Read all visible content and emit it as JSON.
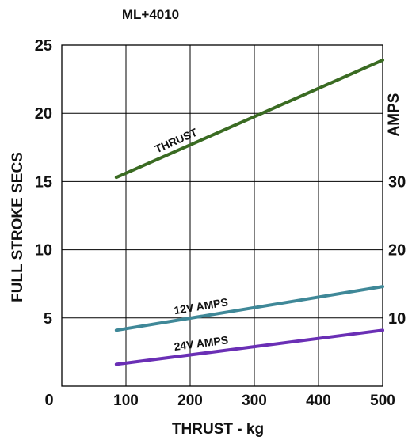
{
  "chart_data": {
    "type": "line",
    "title": "ML+4010",
    "xlabel": "THRUST - kg",
    "ylabel_left": "FULL STROKE SECS",
    "ylabel_right": "AMPS",
    "xlim": [
      0,
      500
    ],
    "ylim": [
      0,
      25
    ],
    "x_ticks": [
      "100",
      "200",
      "300",
      "400",
      "500"
    ],
    "y_ticks_left": [
      "5",
      "10",
      "15",
      "20",
      "25"
    ],
    "y_ticks_right": [
      "10",
      "20",
      "30"
    ],
    "origin_label": "0",
    "grid": true,
    "series": [
      {
        "name": "THRUST",
        "axis": "left",
        "color": "#3a6b22",
        "x": [
          85,
          500
        ],
        "y": [
          15.3,
          23.9
        ]
      },
      {
        "name": "12V AMPS",
        "axis": "left",
        "color": "#3f8898",
        "x": [
          85,
          500
        ],
        "y": [
          4.1,
          7.3
        ]
      },
      {
        "name": "24V AMPS",
        "axis": "left",
        "color": "#6a2fb5",
        "x": [
          85,
          500
        ],
        "y": [
          1.6,
          4.1
        ]
      }
    ]
  }
}
